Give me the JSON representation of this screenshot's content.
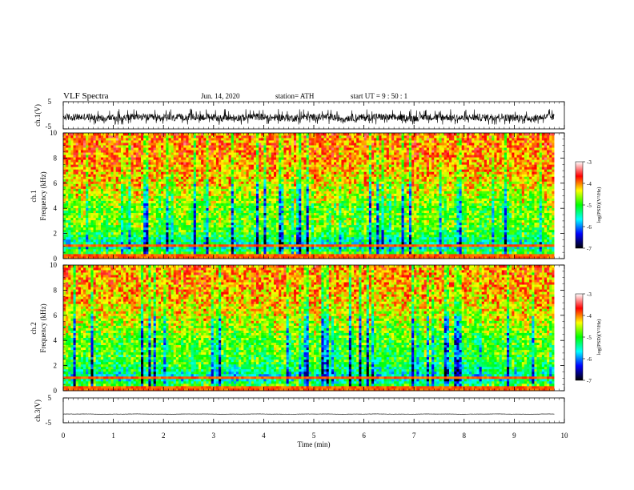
{
  "header": {
    "title": "VLF  Spectra",
    "date": "Jun.  14,  2020",
    "station": "station= ATH",
    "start": "start  UT  =    9  : 50 : 1"
  },
  "chart_data": [
    {
      "type": "line",
      "name": "ch1-waveform",
      "ylabel": "ch.1(V)",
      "ylim": [
        -5,
        5
      ],
      "yticks": [
        5,
        -5
      ],
      "xlim": [
        0,
        10
      ],
      "x_end": 9.8,
      "approx_mean": -0.8,
      "approx_range": [
        -3.0,
        1.8
      ]
    },
    {
      "type": "heatmap",
      "name": "ch1-spectrogram",
      "ylabel_channel": "ch.1",
      "ylabel": "Frequency  (kHz)",
      "ylim": [
        0,
        10
      ],
      "yticks": [
        0,
        2,
        4,
        6,
        8,
        10
      ],
      "xlim": [
        0,
        10
      ],
      "x_end": 9.8,
      "colorbar": {
        "label": "log(PSD)(V²/Hz)",
        "ticks": [
          -3,
          -4,
          -5,
          -6,
          -7
        ],
        "range": [
          -7,
          -3
        ]
      },
      "profile_kHz_log": [
        [
          0,
          -4.2
        ],
        [
          0.4,
          -4.8
        ],
        [
          1.0,
          -5.6
        ],
        [
          2.0,
          -5.0
        ],
        [
          3.0,
          -4.7
        ],
        [
          4.0,
          -4.8
        ],
        [
          5.0,
          -4.5
        ],
        [
          6.0,
          -4.3
        ],
        [
          8.0,
          -4.0
        ],
        [
          10.0,
          -3.9
        ]
      ]
    },
    {
      "type": "heatmap",
      "name": "ch2-spectrogram",
      "ylabel_channel": "ch.2",
      "ylabel": "Frequency  (kHz)",
      "ylim": [
        0,
        10
      ],
      "yticks": [
        0,
        2,
        4,
        6,
        8,
        10
      ],
      "xlim": [
        0,
        10
      ],
      "x_end": 9.8,
      "colorbar": {
        "label": "log(PSD)(V²/Hz)",
        "ticks": [
          -3,
          -4,
          -5,
          -6,
          -7
        ],
        "range": [
          -7,
          -3
        ]
      },
      "profile_kHz_log": [
        [
          0,
          -4.3
        ],
        [
          0.5,
          -5.0
        ],
        [
          1.0,
          -5.6
        ],
        [
          2.0,
          -5.1
        ],
        [
          3.0,
          -4.9
        ],
        [
          4.0,
          -4.9
        ],
        [
          5.0,
          -4.6
        ],
        [
          6.0,
          -4.4
        ],
        [
          8.0,
          -4.1
        ],
        [
          10.0,
          -4.0
        ]
      ]
    },
    {
      "type": "line",
      "name": "ch3-waveform",
      "ylabel": "ch.3(V)",
      "ylim": [
        -5,
        5
      ],
      "yticks": [
        5,
        -5
      ],
      "xlim": [
        0,
        10
      ],
      "x_end": 9.8,
      "approx_mean": -1.5,
      "approx_range": [
        -1.9,
        -1.1
      ]
    }
  ],
  "xaxis": {
    "label": "Time  (min)",
    "ticks": [
      0,
      1,
      2,
      3,
      4,
      5,
      6,
      7,
      8,
      9,
      10
    ],
    "range": [
      0,
      10
    ]
  },
  "colormap": [
    "#000000",
    "#0000ff",
    "#00ffff",
    "#00ff00",
    "#ffff00",
    "#ff0000",
    "#ffffff"
  ]
}
